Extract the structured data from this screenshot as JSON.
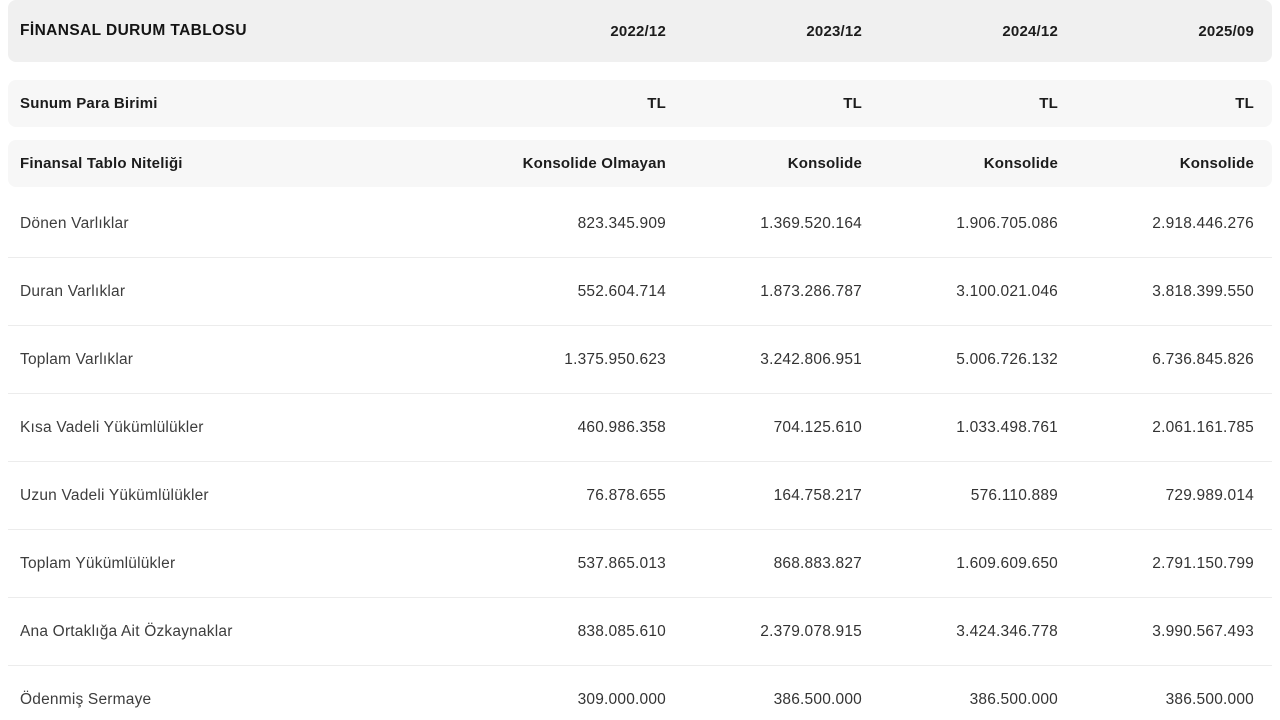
{
  "table": {
    "title": "FİNANSAL DURUM TABLOSU",
    "periods": [
      "2022/12",
      "2023/12",
      "2024/12",
      "2025/09"
    ],
    "meta_rows": [
      {
        "label": "Sunum Para Birimi",
        "values": [
          "TL",
          "TL",
          "TL",
          "TL"
        ]
      },
      {
        "label": "Finansal Tablo Niteliği",
        "values": [
          "Konsolide Olmayan",
          "Konsolide",
          "Konsolide",
          "Konsolide"
        ]
      }
    ],
    "data_rows": [
      {
        "label": "Dönen Varlıklar",
        "values": [
          "823.345.909",
          "1.369.520.164",
          "1.906.705.086",
          "2.918.446.276"
        ]
      },
      {
        "label": "Duran Varlıklar",
        "values": [
          "552.604.714",
          "1.873.286.787",
          "3.100.021.046",
          "3.818.399.550"
        ]
      },
      {
        "label": "Toplam Varlıklar",
        "values": [
          "1.375.950.623",
          "3.242.806.951",
          "5.006.726.132",
          "6.736.845.826"
        ]
      },
      {
        "label": "Kısa Vadeli Yükümlülükler",
        "values": [
          "460.986.358",
          "704.125.610",
          "1.033.498.761",
          "2.061.161.785"
        ]
      },
      {
        "label": "Uzun Vadeli Yükümlülükler",
        "values": [
          "76.878.655",
          "164.758.217",
          "576.110.889",
          "729.989.014"
        ]
      },
      {
        "label": "Toplam Yükümlülükler",
        "values": [
          "537.865.013",
          "868.883.827",
          "1.609.609.650",
          "2.791.150.799"
        ]
      },
      {
        "label": "Ana Ortaklığa Ait Özkaynaklar",
        "values": [
          "838.085.610",
          "2.379.078.915",
          "3.424.346.778",
          "3.990.567.493"
        ]
      },
      {
        "label": "Ödenmiş Sermaye",
        "values": [
          "309.000.000",
          "386.500.000",
          "386.500.000",
          "386.500.000"
        ]
      }
    ],
    "colors": {
      "header_bg": "#f0f0f0",
      "meta_bg": "#f7f7f7",
      "row_separator": "#ececec",
      "heading_text": "#1c1c1c",
      "body_text": "#333333"
    }
  }
}
